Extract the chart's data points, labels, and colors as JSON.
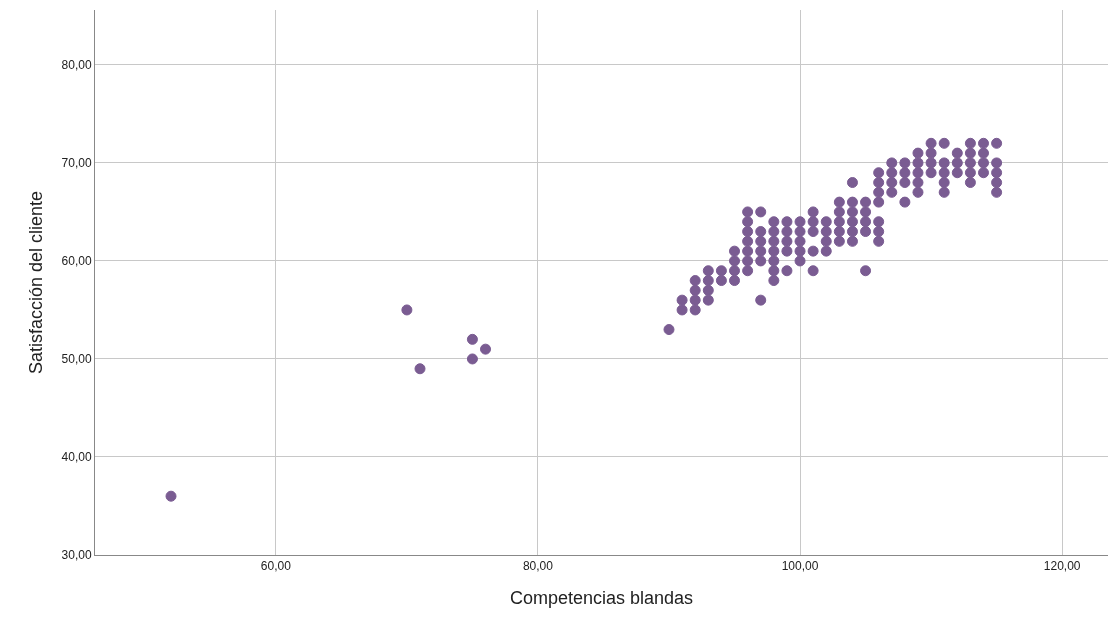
{
  "chart_data": {
    "type": "scatter",
    "xlabel": "Competencias blandas",
    "ylabel": "Satisfacción del cliente",
    "x": [
      52,
      70,
      71,
      75,
      75,
      76,
      90,
      91,
      91,
      92,
      92,
      92,
      92,
      93,
      93,
      93,
      93,
      94,
      94,
      95,
      95,
      95,
      95,
      96,
      96,
      96,
      96,
      96,
      96,
      96,
      97,
      97,
      97,
      97,
      97,
      97,
      98,
      98,
      98,
      98,
      98,
      98,
      98,
      99,
      99,
      99,
      99,
      99,
      100,
      100,
      100,
      100,
      100,
      101,
      101,
      101,
      101,
      101,
      102,
      102,
      102,
      102,
      103,
      103,
      103,
      103,
      103,
      104,
      104,
      104,
      104,
      104,
      104,
      105,
      105,
      105,
      105,
      105,
      106,
      106,
      106,
      106,
      106,
      106,
      106,
      107,
      107,
      107,
      107,
      108,
      108,
      108,
      108,
      109,
      109,
      109,
      109,
      109,
      110,
      110,
      110,
      110,
      111,
      111,
      111,
      111,
      111,
      112,
      112,
      112,
      113,
      113,
      113,
      113,
      113,
      114,
      114,
      114,
      114,
      115,
      115,
      115,
      115,
      115
    ],
    "values": [
      36,
      55,
      49,
      52,
      50,
      51,
      53,
      56,
      55,
      58,
      57,
      56,
      55,
      59,
      58,
      57,
      56,
      59,
      58,
      61,
      60,
      59,
      58,
      65,
      64,
      63,
      62,
      61,
      60,
      59,
      65,
      63,
      62,
      61,
      60,
      56,
      64,
      63,
      62,
      61,
      60,
      59,
      58,
      64,
      63,
      62,
      61,
      59,
      64,
      63,
      62,
      61,
      60,
      65,
      64,
      63,
      61,
      59,
      64,
      63,
      62,
      61,
      66,
      65,
      64,
      63,
      62,
      68,
      66,
      65,
      64,
      63,
      62,
      66,
      65,
      64,
      63,
      59,
      69,
      68,
      67,
      66,
      64,
      63,
      62,
      70,
      69,
      68,
      67,
      70,
      69,
      68,
      66,
      71,
      70,
      69,
      68,
      67,
      72,
      71,
      70,
      69,
      72,
      70,
      69,
      68,
      67,
      71,
      70,
      69,
      72,
      71,
      70,
      69,
      68,
      72,
      71,
      70,
      69,
      72,
      70,
      69,
      68,
      67
    ],
    "color": "#7a5c92",
    "marker": "circle",
    "grid": true,
    "xlim": [
      46.2,
      123.5
    ],
    "xticks": [
      {
        "value": 60,
        "label": "60,00"
      },
      {
        "value": 80,
        "label": "80,00"
      },
      {
        "value": 100,
        "label": "100,00"
      },
      {
        "value": 120,
        "label": "120,00"
      }
    ],
    "ylim": [
      30,
      85.6
    ],
    "yticks": [
      {
        "value": 30,
        "label": "30,00"
      },
      {
        "value": 40,
        "label": "40,00"
      },
      {
        "value": 50,
        "label": "50,00"
      },
      {
        "value": 60,
        "label": "60,00"
      },
      {
        "value": 70,
        "label": "70,00"
      },
      {
        "value": 80,
        "label": "80,00"
      }
    ]
  }
}
